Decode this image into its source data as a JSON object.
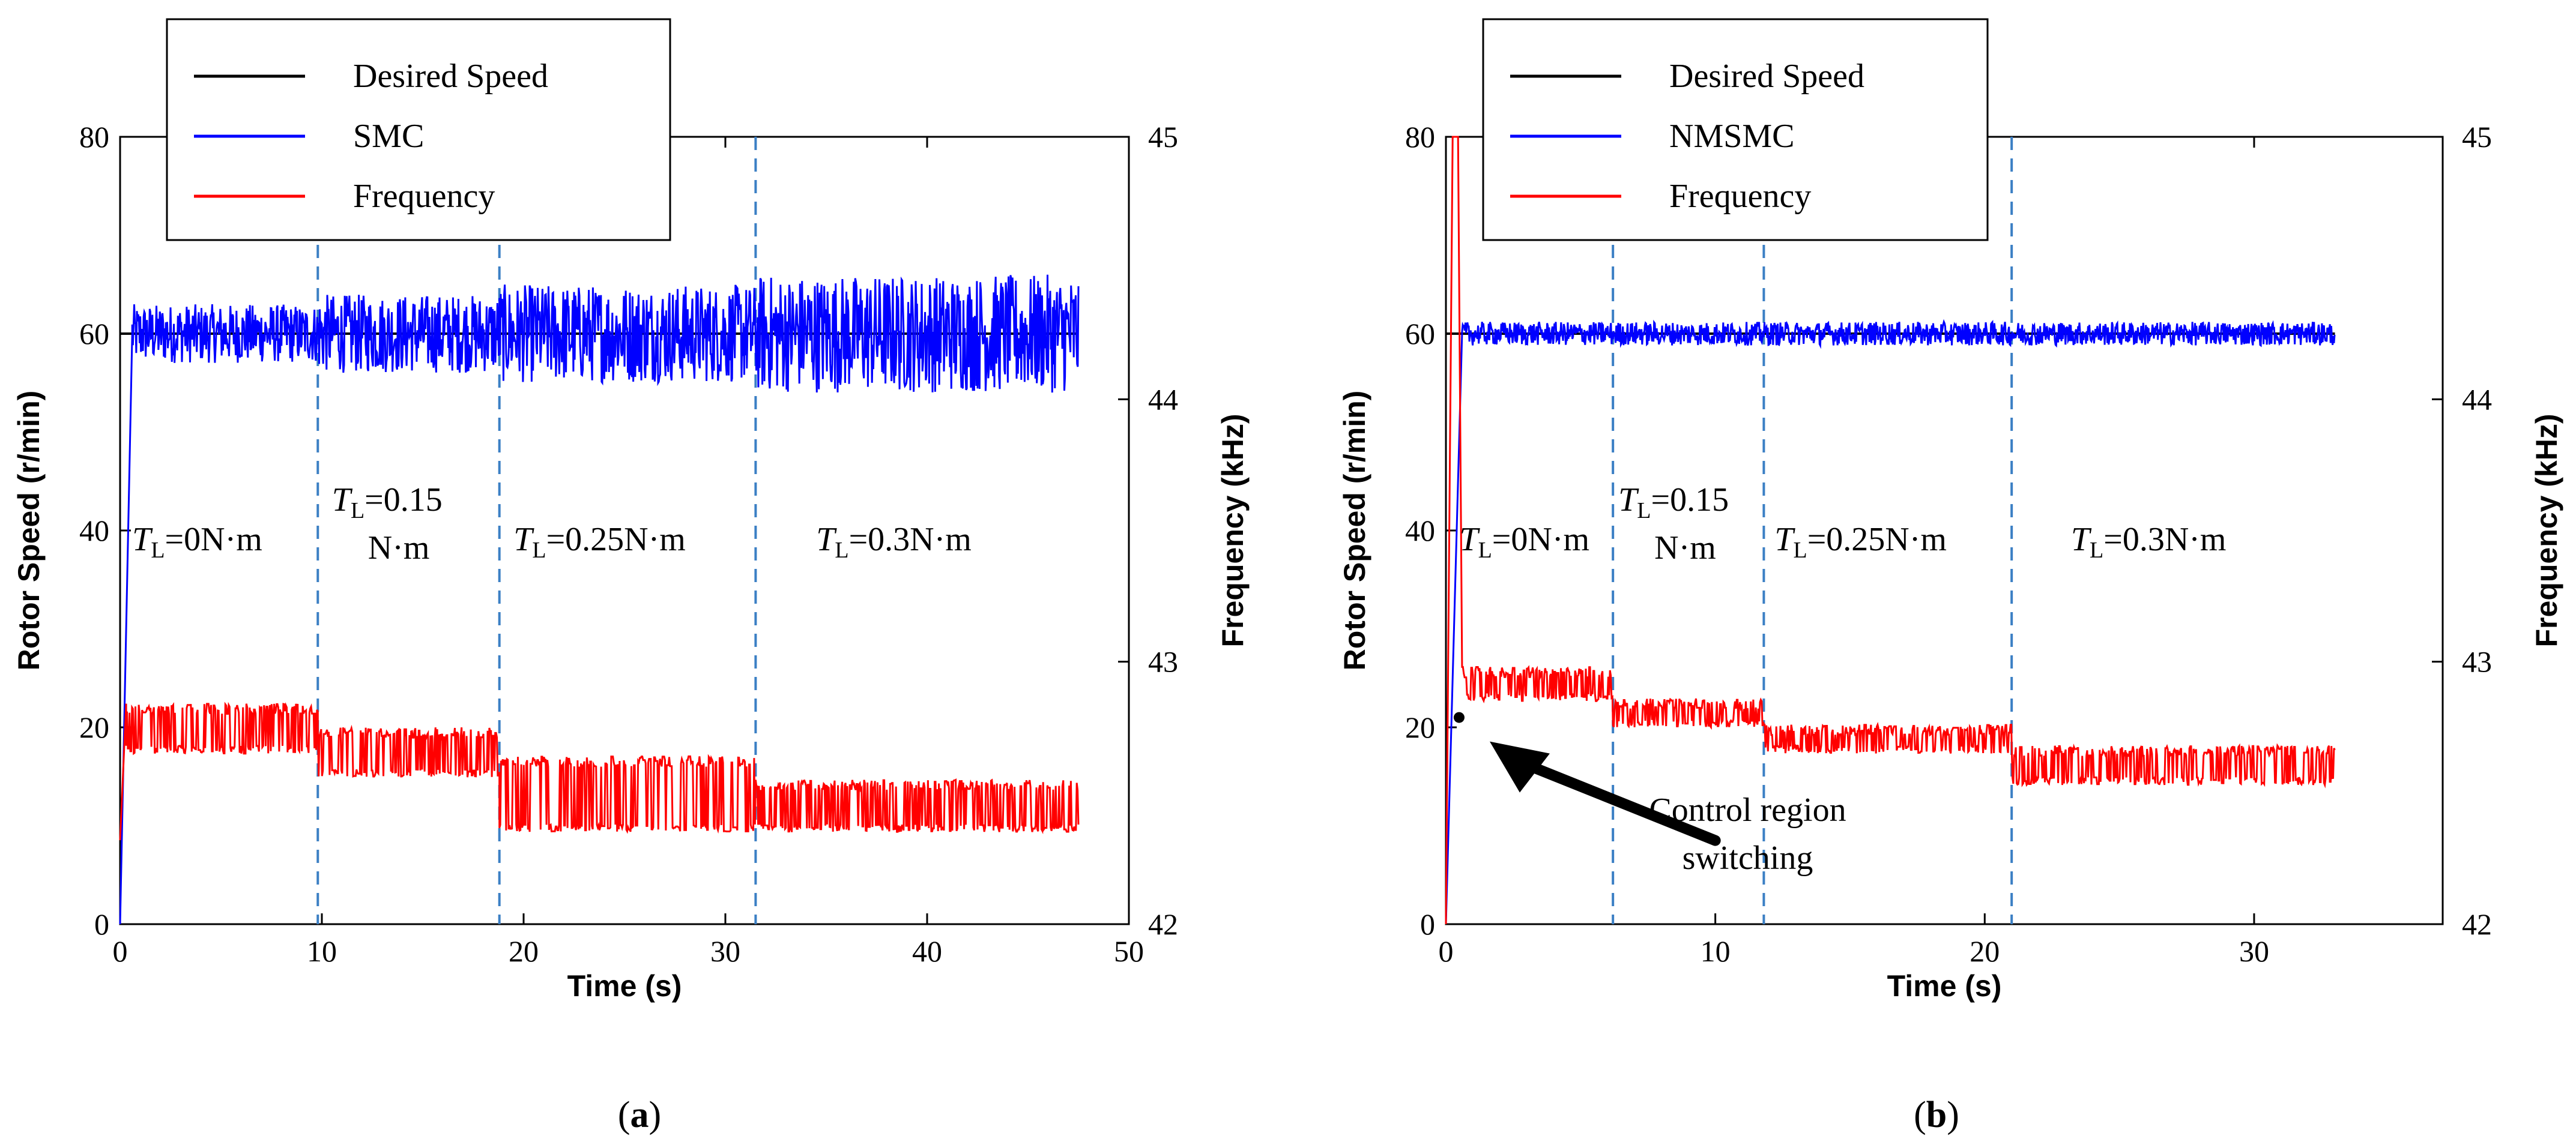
{
  "chart_data": [
    {
      "type": "line",
      "panel_label": "a",
      "xlabel": "Time (s)",
      "ylabel": "Rotor Speed (r/min)",
      "y2label": "Frequency (kHz)",
      "xlim": [
        0,
        50
      ],
      "ylim": [
        0,
        80
      ],
      "y2lim": [
        42,
        45
      ],
      "xticks": [
        "0",
        "10",
        "20",
        "30",
        "40",
        "50"
      ],
      "yticks": [
        "0",
        "20",
        "40",
        "60",
        "80"
      ],
      "y2ticks": [
        "42",
        "43",
        "44",
        "45"
      ],
      "legend": {
        "placement": "top-left",
        "entries": [
          {
            "name": "Desired Speed",
            "color": "#000000"
          },
          {
            "name": "SMC",
            "color": "#0000ff"
          },
          {
            "name": "Frequency",
            "color": "#ff0000"
          }
        ]
      },
      "series": [
        {
          "name": "Desired Speed",
          "axis": "left",
          "color": "#000000",
          "x": [
            0,
            0.4,
            47.5
          ],
          "y": [
            60,
            60,
            60
          ]
        },
        {
          "name": "SMC",
          "axis": "left",
          "color": "#0000ff",
          "t_end": 47.5,
          "rise_to": 0.6,
          "mean": 60,
          "segments": [
            {
              "from": 0.6,
              "to": 9.8,
              "amplitude": 3
            },
            {
              "from": 9.8,
              "to": 18.8,
              "amplitude": 4
            },
            {
              "from": 18.8,
              "to": 31.5,
              "amplitude": 5
            },
            {
              "from": 31.5,
              "to": 47.5,
              "amplitude": 6
            }
          ]
        },
        {
          "name": "Frequency",
          "axis": "right",
          "color": "#ff0000",
          "t_end": 47.5,
          "segments": [
            {
              "from": 0.3,
              "to": 9.8,
              "high": 42.84,
              "low": 42.65
            },
            {
              "from": 9.8,
              "to": 18.8,
              "high": 42.75,
              "low": 42.56
            },
            {
              "from": 18.8,
              "to": 31.5,
              "high": 42.64,
              "low": 42.35
            },
            {
              "from": 31.5,
              "to": 47.5,
              "high": 42.55,
              "low": 42.35
            }
          ]
        }
      ],
      "vlines": [
        9.8,
        18.8,
        31.5
      ],
      "annotations": [
        {
          "sym": "T",
          "sub": "L",
          "rest": "=0N·m",
          "x": 0.6,
          "y": 38
        },
        {
          "sym": "T",
          "sub": "L",
          "rest": "=0.15",
          "line2": "N·m",
          "x": 10.5,
          "y": 42
        },
        {
          "sym": "T",
          "sub": "L",
          "rest": "=0.25N·m",
          "x": 19.5,
          "y": 38
        },
        {
          "sym": "T",
          "sub": "L",
          "rest": "=0.3N·m",
          "x": 34.5,
          "y": 38
        }
      ]
    },
    {
      "type": "line",
      "panel_label": "b",
      "xlabel": "Time (s)",
      "ylabel": "Rotor Speed (r/min)",
      "y2label": "Frequency (kHz)",
      "xlim": [
        0,
        37
      ],
      "ylim": [
        0,
        80
      ],
      "y2lim": [
        42,
        45
      ],
      "xticks": [
        "0",
        "10",
        "20",
        "30"
      ],
      "yticks": [
        "0",
        "20",
        "40",
        "60",
        "80"
      ],
      "y2ticks": [
        "42",
        "43",
        "44",
        "45"
      ],
      "legend": {
        "placement": "top-left",
        "entries": [
          {
            "name": "Desired Speed",
            "color": "#000000"
          },
          {
            "name": "NMSMC",
            "color": "#0000ff"
          },
          {
            "name": "Frequency",
            "color": "#ff0000"
          }
        ]
      },
      "series": [
        {
          "name": "Desired Speed",
          "axis": "left",
          "color": "#000000",
          "x": [
            0,
            0.4,
            33
          ],
          "y": [
            60,
            60,
            60
          ]
        },
        {
          "name": "NMSMC",
          "axis": "left",
          "color": "#0000ff",
          "t_end": 33,
          "rise_to": 0.6,
          "mean": 60,
          "segments": [
            {
              "from": 0.6,
              "to": 33,
              "amplitude": 1.2
            }
          ]
        },
        {
          "name": "Frequency",
          "axis": "right",
          "color": "#ff0000",
          "t_end": 33,
          "spike_to": 45,
          "spike_at": 0.25,
          "segments": [
            {
              "from": 0.6,
              "to": 6.2,
              "high": 42.98,
              "low": 42.85
            },
            {
              "from": 6.2,
              "to": 11.8,
              "high": 42.86,
              "low": 42.75
            },
            {
              "from": 11.8,
              "to": 21.0,
              "high": 42.76,
              "low": 42.65
            },
            {
              "from": 21.0,
              "to": 33,
              "high": 42.68,
              "low": 42.53
            }
          ]
        }
      ],
      "vlines": [
        6.2,
        11.8,
        21.0
      ],
      "annotations": [
        {
          "sym": "T",
          "sub": "L",
          "rest": "=0N·m",
          "x": 0.5,
          "y": 38
        },
        {
          "sym": "T",
          "sub": "L",
          "rest": "=0.15",
          "line2": "N·m",
          "x": 6.4,
          "y": 42
        },
        {
          "sym": "T",
          "sub": "L",
          "rest": "=0.25N·m",
          "x": 12.2,
          "y": 38
        },
        {
          "sym": "T",
          "sub": "L",
          "rest": "=0.3N·m",
          "x": 23.2,
          "y": 38
        }
      ],
      "callout": {
        "text_line1": "Control region",
        "text_line2": "switching",
        "point_x": 0.4,
        "point_y": 21
      }
    }
  ]
}
